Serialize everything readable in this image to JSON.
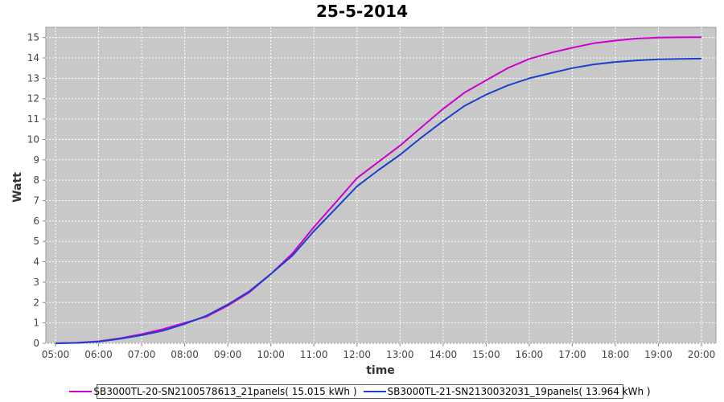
{
  "chart_data": {
    "type": "line",
    "title": "25-5-2014",
    "xlabel": "time",
    "ylabel": "Watt",
    "x_ticks": [
      "05:00",
      "06:00",
      "07:00",
      "08:00",
      "09:00",
      "10:00",
      "11:00",
      "12:00",
      "13:00",
      "14:00",
      "15:00",
      "16:00",
      "17:00",
      "18:00",
      "19:00",
      "20:00"
    ],
    "y_ticks": [
      "0",
      "1",
      "2",
      "3",
      "4",
      "5",
      "6",
      "7",
      "8",
      "9",
      "10",
      "11",
      "12",
      "13",
      "14",
      "15"
    ],
    "ylim": [
      0,
      15.5
    ],
    "grid": true,
    "legend_position": "bottom",
    "plot_background": "#c8c8c8",
    "x": [
      "05:00",
      "05:30",
      "06:00",
      "06:30",
      "07:00",
      "07:30",
      "08:00",
      "08:30",
      "09:00",
      "09:30",
      "10:00",
      "10:30",
      "11:00",
      "11:30",
      "12:00",
      "12:30",
      "13:00",
      "13:30",
      "14:00",
      "14:30",
      "15:00",
      "15:30",
      "16:00",
      "16:30",
      "17:00",
      "17:30",
      "18:00",
      "18:30",
      "19:00",
      "19:30",
      "20:00"
    ],
    "series": [
      {
        "name": "SB3000TL-20-SN2100578613_21panels( 15.015 kWh )",
        "color": "#cc00cc",
        "values": [
          0,
          0.03,
          0.1,
          0.25,
          0.45,
          0.7,
          1.0,
          1.3,
          1.85,
          2.5,
          3.4,
          4.4,
          5.7,
          6.9,
          8.1,
          8.9,
          9.7,
          10.6,
          11.5,
          12.3,
          12.9,
          13.5,
          13.95,
          14.25,
          14.5,
          14.72,
          14.85,
          14.95,
          15.0,
          15.01,
          15.015
        ]
      },
      {
        "name": "SB3000TL-21-SN2130032031_19panels( 13.964 kWh )",
        "color": "#1c3fcc",
        "values": [
          0,
          0.02,
          0.08,
          0.22,
          0.4,
          0.62,
          0.95,
          1.35,
          1.9,
          2.55,
          3.4,
          4.3,
          5.5,
          6.6,
          7.7,
          8.5,
          9.25,
          10.1,
          10.9,
          11.65,
          12.2,
          12.65,
          13.0,
          13.25,
          13.5,
          13.68,
          13.8,
          13.88,
          13.93,
          13.955,
          13.964
        ]
      }
    ]
  }
}
